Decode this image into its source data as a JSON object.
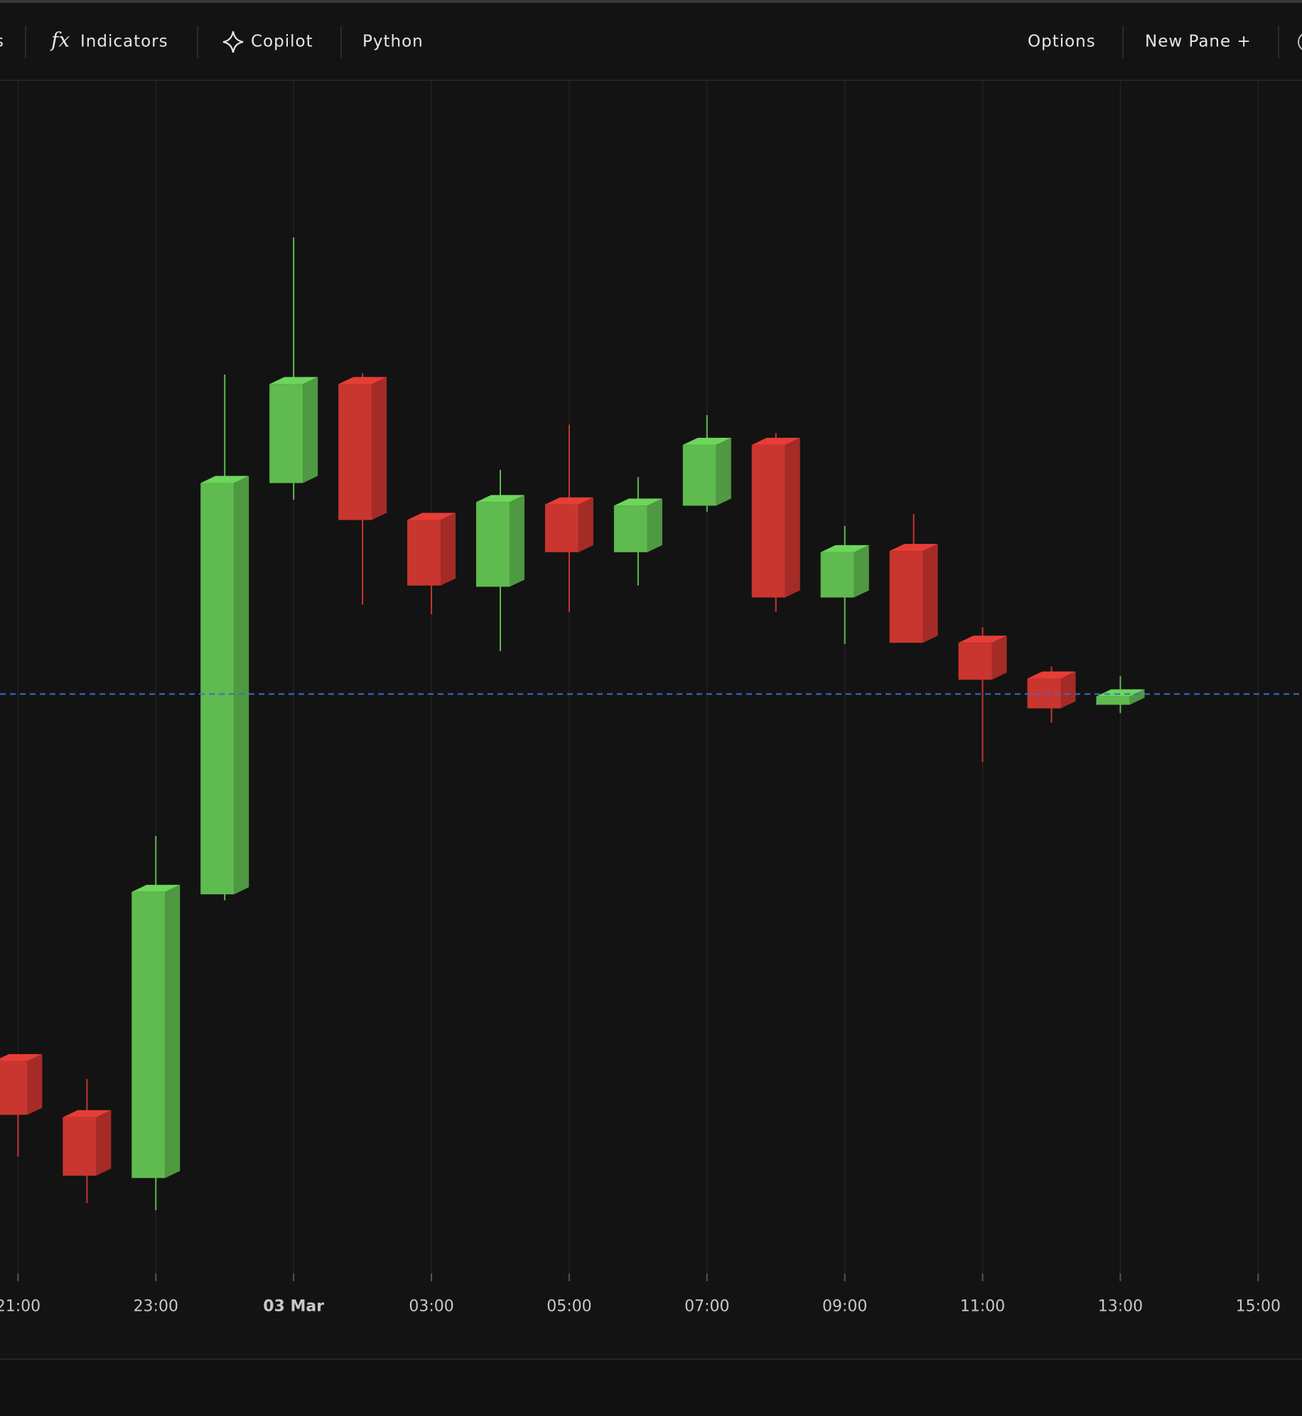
{
  "toolbar": {
    "left": [
      "s",
      "Indicators",
      "Copilot",
      "Python"
    ],
    "icon_fx": "fx",
    "right": [
      "Options",
      "New Pane +"
    ]
  },
  "chart_data": {
    "type": "candlestick",
    "categories": [
      "21:00",
      null,
      "23:00",
      null,
      "03 Mar",
      null,
      "03:00",
      null,
      "05:00",
      null,
      "07:00",
      null,
      "09:00",
      null,
      "11:00",
      null,
      "13:00",
      null,
      "15:00"
    ],
    "open": [
      17.8,
      13.1,
      8.0,
      31.8,
      66.3,
      74.6,
      63.2,
      57.6,
      64.5,
      60.5,
      64.4,
      69.5,
      56.7,
      60.6,
      52.9,
      49.9,
      47.7,
      null,
      null
    ],
    "high": [
      18.2,
      16.3,
      36.7,
      75.4,
      86.9,
      75.5,
      63.5,
      67.4,
      71.2,
      66.8,
      72.0,
      70.5,
      62.7,
      63.7,
      54.2,
      50.9,
      50.1,
      null,
      null
    ],
    "low": [
      9.8,
      5.9,
      5.3,
      31.3,
      64.9,
      56.1,
      55.3,
      52.2,
      55.5,
      57.7,
      63.9,
      55.5,
      52.8,
      52.9,
      42.9,
      46.2,
      47.0,
      null,
      null
    ],
    "close": [
      13.3,
      8.2,
      32.0,
      66.3,
      74.6,
      63.2,
      57.7,
      64.7,
      60.5,
      64.4,
      69.5,
      56.7,
      60.5,
      52.9,
      49.8,
      47.4,
      48.4,
      null,
      null
    ],
    "up_color": "#5fba4f",
    "down_color": "#c9352f",
    "ylim": [
      0,
      100
    ],
    "grid": true,
    "last_price": 48.6,
    "last_price_color": "#3b6fc4"
  }
}
